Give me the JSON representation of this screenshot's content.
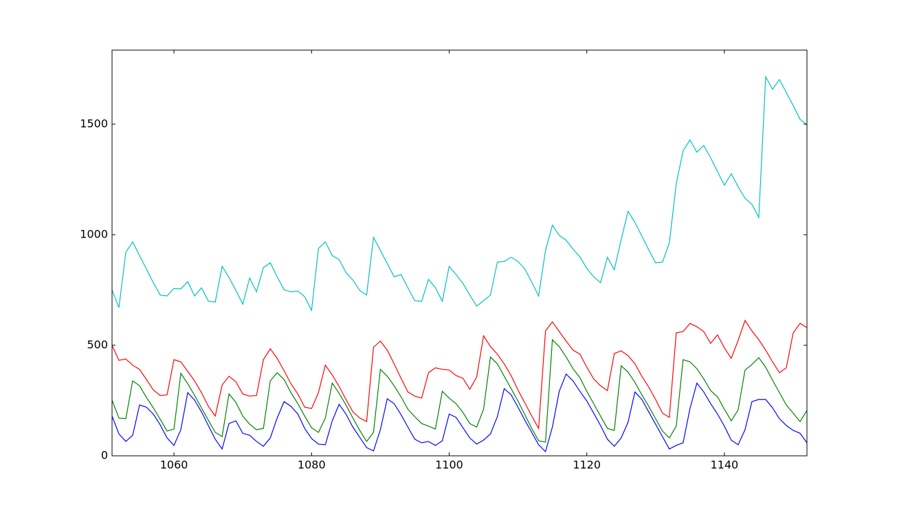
{
  "chart_data": {
    "type": "line",
    "x": [
      1051,
      1052,
      1053,
      1054,
      1055,
      1056,
      1057,
      1058,
      1059,
      1060,
      1061,
      1062,
      1063,
      1064,
      1065,
      1066,
      1067,
      1068,
      1069,
      1070,
      1071,
      1072,
      1073,
      1074,
      1075,
      1076,
      1077,
      1078,
      1079,
      1080,
      1081,
      1082,
      1083,
      1084,
      1085,
      1086,
      1087,
      1088,
      1089,
      1090,
      1091,
      1092,
      1093,
      1094,
      1095,
      1096,
      1097,
      1098,
      1099,
      1100,
      1101,
      1102,
      1103,
      1104,
      1105,
      1106,
      1107,
      1108,
      1109,
      1110,
      1111,
      1112,
      1113,
      1114,
      1115,
      1116,
      1117,
      1118,
      1119,
      1120,
      1121,
      1122,
      1123,
      1124,
      1125,
      1126,
      1127,
      1128,
      1129,
      1130,
      1131,
      1132,
      1133,
      1134,
      1135,
      1136,
      1137,
      1138,
      1139,
      1140,
      1141,
      1142,
      1143,
      1144,
      1145,
      1146,
      1147,
      1148,
      1149,
      1150,
      1151,
      1152
    ],
    "series": [
      {
        "color": "#0000ff",
        "values": [
          180,
          99,
          65,
          93,
          230,
          220,
          189,
          140,
          81,
          47,
          118,
          286,
          252,
          199,
          137,
          75,
          31,
          146,
          158,
          102,
          93,
          65,
          43,
          81,
          171,
          245,
          224,
          189,
          124,
          78,
          53,
          50,
          158,
          233,
          189,
          130,
          84,
          37,
          22,
          118,
          258,
          236,
          186,
          130,
          75,
          59,
          65,
          47,
          68,
          189,
          174,
          127,
          81,
          53,
          71,
          99,
          177,
          304,
          276,
          220,
          161,
          106,
          50,
          19,
          130,
          292,
          370,
          339,
          292,
          248,
          193,
          137,
          75,
          43,
          81,
          152,
          289,
          255,
          199,
          143,
          87,
          31,
          47,
          59,
          214,
          329,
          289,
          236,
          189,
          134,
          71,
          50,
          118,
          245,
          255,
          255,
          217,
          168,
          137,
          115,
          102,
          59
        ]
      },
      {
        "color": "#008000",
        "values": [
          252,
          171,
          168,
          339,
          317,
          264,
          217,
          165,
          112,
          121,
          373,
          326,
          273,
          217,
          161,
          106,
          87,
          280,
          242,
          180,
          143,
          118,
          124,
          339,
          376,
          345,
          286,
          236,
          180,
          127,
          106,
          171,
          329,
          283,
          230,
          171,
          115,
          65,
          106,
          391,
          360,
          317,
          267,
          211,
          177,
          146,
          134,
          121,
          292,
          261,
          236,
          196,
          146,
          130,
          211,
          447,
          416,
          360,
          304,
          248,
          186,
          124,
          68,
          62,
          525,
          494,
          447,
          394,
          354,
          292,
          236,
          180,
          124,
          115,
          407,
          379,
          332,
          276,
          224,
          168,
          112,
          81,
          134,
          435,
          425,
          394,
          348,
          295,
          267,
          211,
          158,
          208,
          388,
          413,
          444,
          401,
          342,
          286,
          230,
          193,
          155,
          205
        ]
      },
      {
        "color": "#ff0000",
        "values": [
          500,
          432,
          438,
          410,
          391,
          345,
          298,
          273,
          276,
          435,
          425,
          382,
          339,
          286,
          224,
          180,
          320,
          360,
          335,
          280,
          270,
          273,
          435,
          484,
          441,
          385,
          326,
          280,
          220,
          214,
          286,
          410,
          366,
          314,
          255,
          199,
          171,
          155,
          491,
          519,
          478,
          416,
          351,
          289,
          270,
          261,
          376,
          398,
          391,
          388,
          363,
          351,
          301,
          357,
          543,
          494,
          460,
          416,
          363,
          298,
          239,
          180,
          124,
          565,
          606,
          562,
          519,
          478,
          460,
          401,
          348,
          317,
          295,
          463,
          475,
          453,
          416,
          360,
          311,
          255,
          193,
          174,
          556,
          562,
          599,
          584,
          562,
          509,
          547,
          488,
          441,
          522,
          612,
          565,
          525,
          478,
          425,
          376,
          398,
          556,
          599,
          580
        ]
      },
      {
        "color": "#00bfbf",
        "values": [
          750,
          670,
          920,
          968,
          905,
          845,
          783,
          727,
          723,
          757,
          755,
          788,
          723,
          760,
          700,
          695,
          857,
          807,
          748,
          686,
          804,
          742,
          851,
          873,
          810,
          751,
          742,
          745,
          720,
          658,
          938,
          968,
          906,
          888,
          829,
          795,
          748,
          727,
          988,
          929,
          870,
          810,
          820,
          760,
          702,
          699,
          798,
          760,
          699,
          857,
          820,
          780,
          727,
          677,
          702,
          727,
          876,
          879,
          898,
          879,
          845,
          786,
          723,
          929,
          1043,
          997,
          975,
          935,
          900,
          848,
          810,
          783,
          898,
          842,
          978,
          1106,
          1056,
          994,
          932,
          873,
          876,
          963,
          1230,
          1379,
          1429,
          1373,
          1404,
          1348,
          1286,
          1224,
          1276,
          1217,
          1165,
          1137,
          1078,
          1714,
          1658,
          1702,
          1643,
          1584,
          1522,
          1497
        ]
      }
    ],
    "xlim": [
      1051,
      1152
    ],
    "xticks": [
      1060,
      1080,
      1100,
      1120,
      1140
    ],
    "ylim": [
      0,
      1835
    ],
    "yticks": [
      0,
      500,
      1000,
      1500
    ]
  }
}
